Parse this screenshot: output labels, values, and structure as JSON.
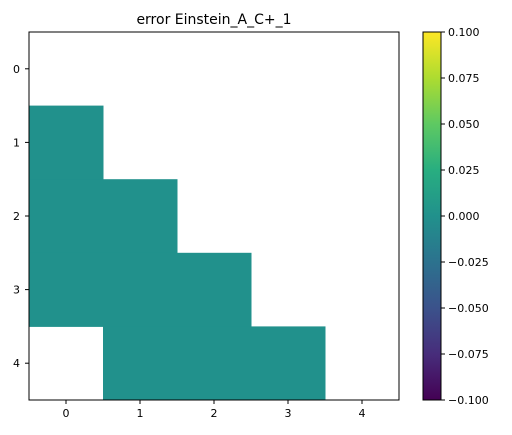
{
  "chart_data": {
    "type": "heatmap",
    "title": "error Einstein_A_C+_1",
    "x_ticks": [
      "0",
      "1",
      "2",
      "3",
      "4"
    ],
    "y_ticks": [
      "0",
      "1",
      "2",
      "3",
      "4"
    ],
    "grid": false,
    "colormap": "viridis",
    "cell_color": "#21918c",
    "cells": [
      {
        "row": 1,
        "col": 0,
        "value": 0.0
      },
      {
        "row": 2,
        "col": 0,
        "value": 0.0
      },
      {
        "row": 2,
        "col": 1,
        "value": 0.0
      },
      {
        "row": 3,
        "col": 0,
        "value": 0.0
      },
      {
        "row": 3,
        "col": 1,
        "value": 0.0
      },
      {
        "row": 3,
        "col": 2,
        "value": 0.0
      },
      {
        "row": 4,
        "col": 1,
        "value": 0.0
      },
      {
        "row": 4,
        "col": 2,
        "value": 0.0
      },
      {
        "row": 4,
        "col": 3,
        "value": 0.0
      }
    ],
    "colorbar": {
      "range": [
        -0.1,
        0.1
      ],
      "ticks": [
        0.1,
        0.075,
        0.05,
        0.025,
        0.0,
        -0.025,
        -0.05,
        -0.075,
        -0.1
      ],
      "tick_labels": [
        "0.100",
        "0.075",
        "0.050",
        "0.025",
        "0.000",
        "−0.025",
        "−0.050",
        "−0.075",
        "−0.100"
      ]
    }
  }
}
